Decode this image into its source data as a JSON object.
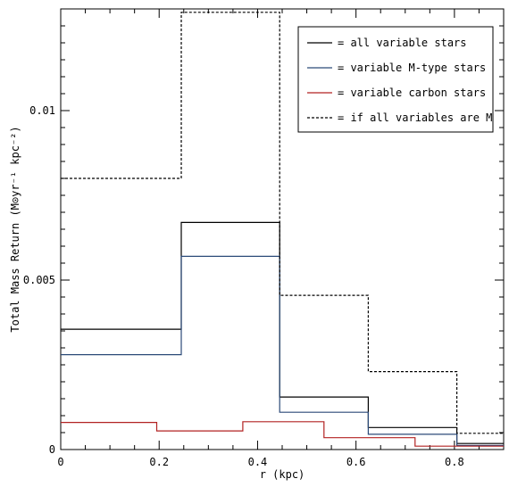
{
  "chart_data": {
    "type": "line",
    "title": "",
    "xlabel": "r (kpc)",
    "ylabel": "Total Mass Return (M⊙yr⁻¹ kpc⁻²)",
    "xlim": [
      0,
      0.9
    ],
    "ylim": [
      0,
      0.013
    ],
    "xticks": [
      0,
      0.2,
      0.4,
      0.6,
      0.8
    ],
    "xtick_labels": [
      "0",
      "0.2",
      "0.4",
      "0.6",
      "0.8"
    ],
    "yticks": [
      0,
      0.005,
      0.01
    ],
    "ytick_labels": [
      "0",
      "0.005",
      "0.01"
    ],
    "grid": false,
    "legend_position": "top-right",
    "step_style": "histogram",
    "series": [
      {
        "name": "= all variable stars",
        "color": "#000000",
        "dash": "solid",
        "edges": [
          0,
          0.245,
          0.445,
          0.625,
          0.805,
          0.9
        ],
        "values": [
          0.00355,
          0.0067,
          0.00155,
          0.00065,
          0.00018
        ]
      },
      {
        "name": "= variable M-type stars",
        "color": "#2b4a78",
        "dash": "solid",
        "edges": [
          0,
          0.245,
          0.445,
          0.625,
          0.805,
          0.9
        ],
        "values": [
          0.0028,
          0.0057,
          0.0011,
          0.00045,
          0.00012
        ]
      },
      {
        "name": "= variable carbon stars",
        "color": "#b22222",
        "dash": "solid",
        "edges": [
          0,
          0.195,
          0.37,
          0.535,
          0.72,
          0.9
        ],
        "values": [
          0.0008,
          0.00055,
          0.00082,
          0.00035,
          0.0001
        ]
      },
      {
        "name": "= if all variables are M",
        "color": "#000000",
        "dash": "dotted",
        "edges": [
          0,
          0.245,
          0.445,
          0.625,
          0.805,
          0.9
        ],
        "values": [
          0.008,
          0.0129,
          0.00455,
          0.0023,
          0.00048
        ]
      }
    ]
  }
}
